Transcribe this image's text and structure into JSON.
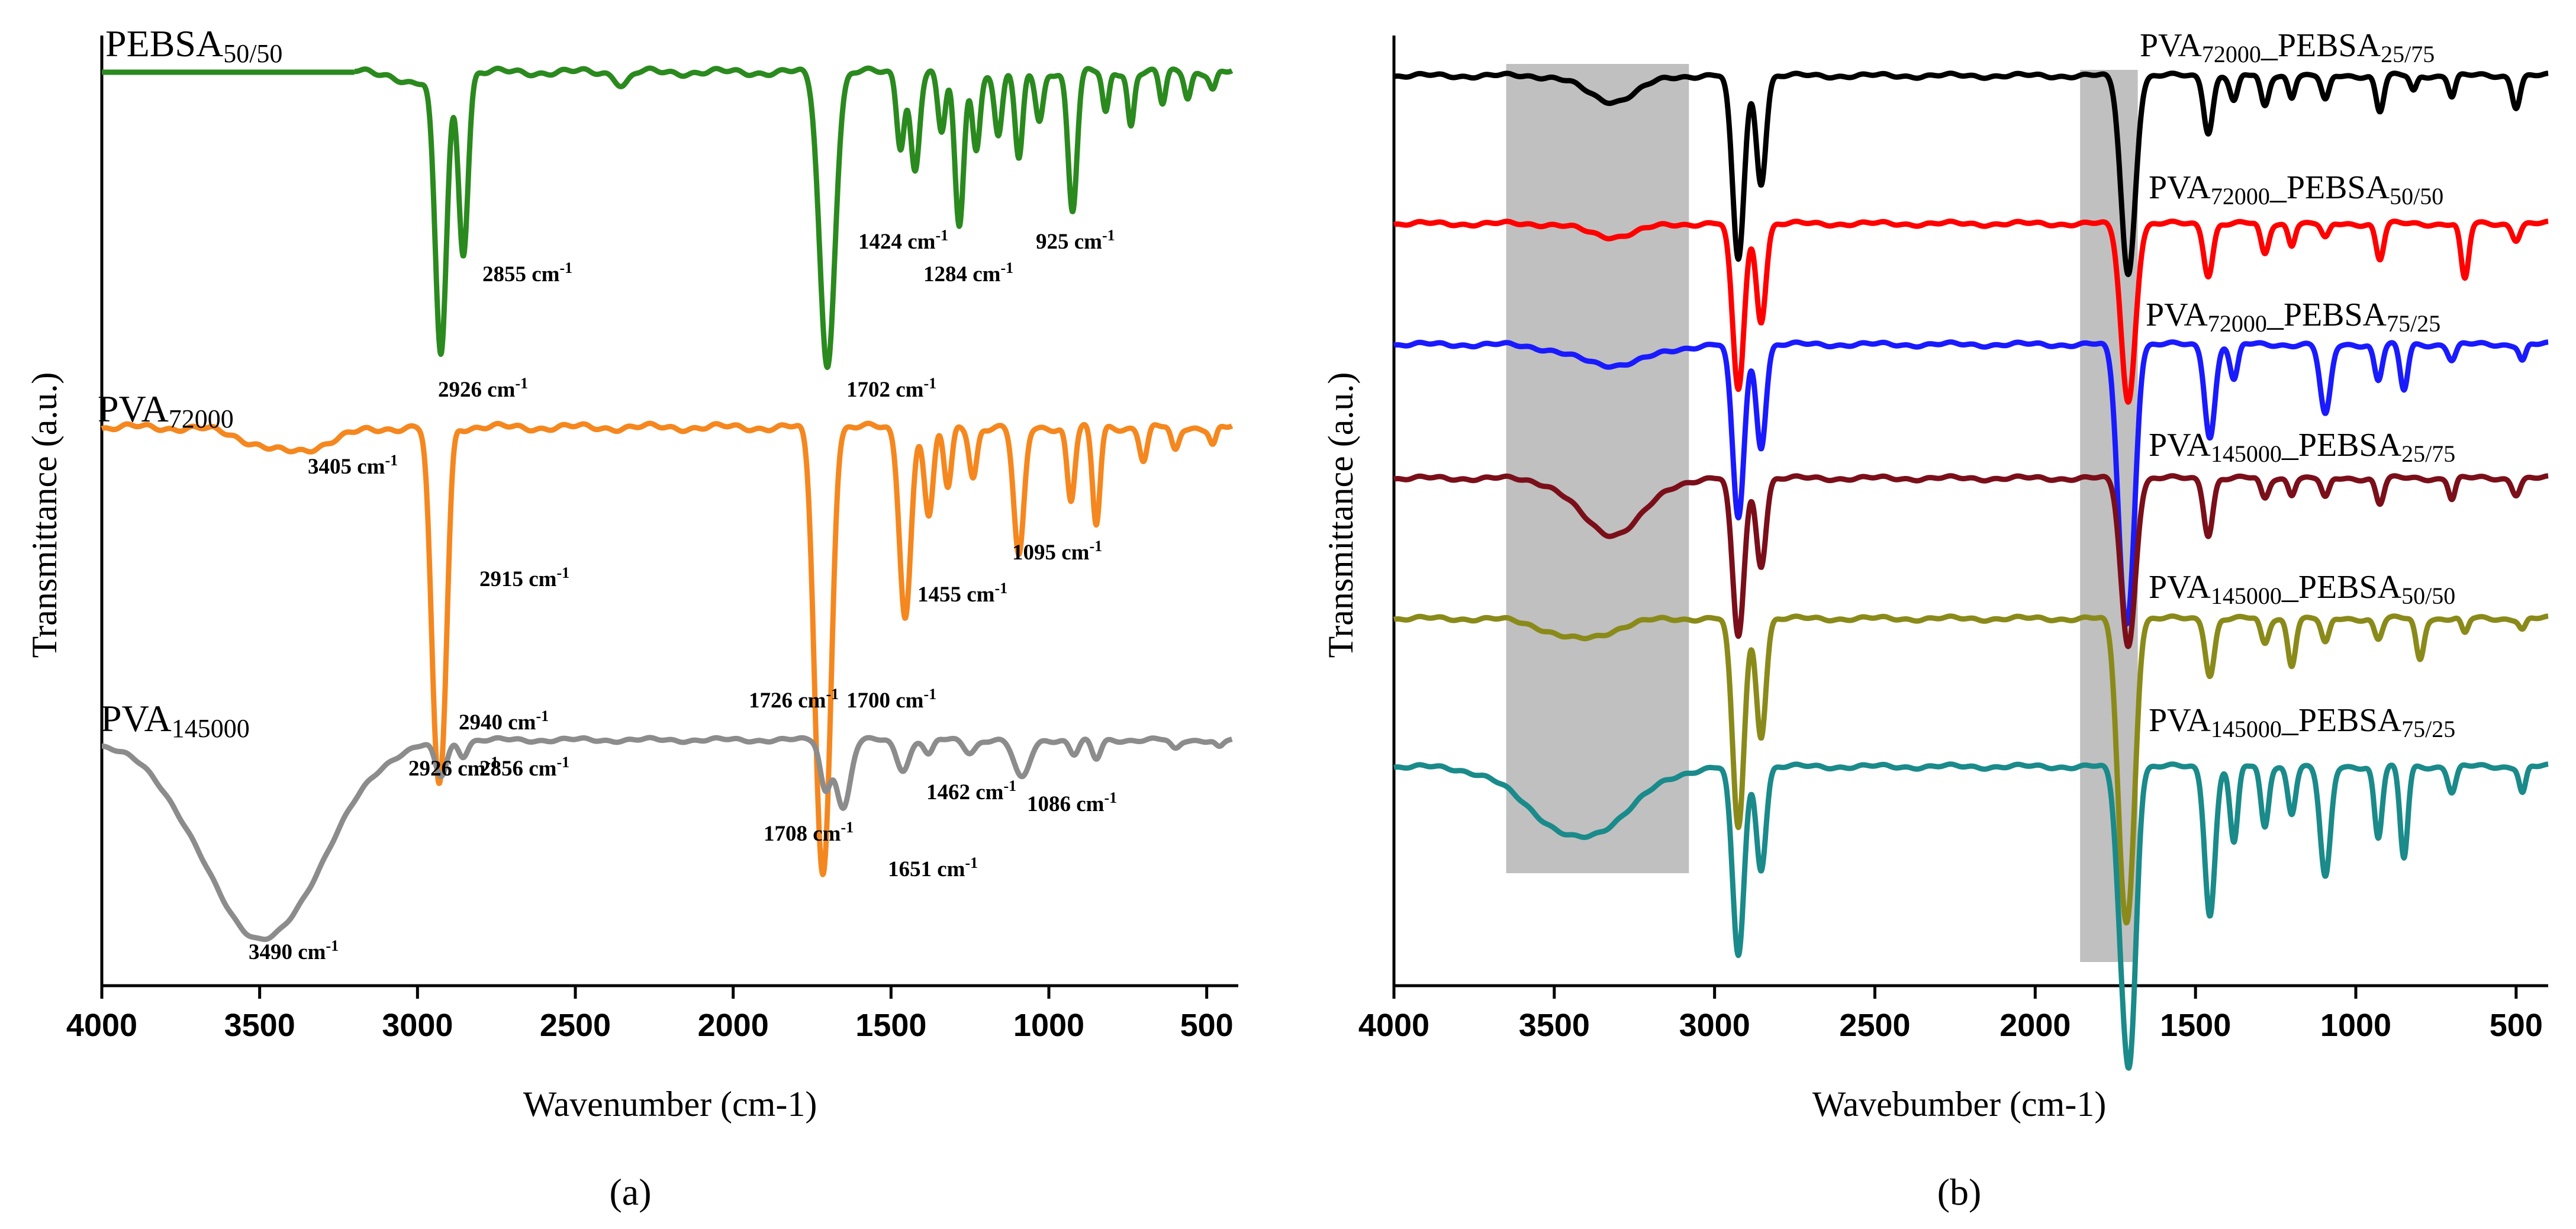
{
  "chart_data": [
    {
      "panel_label": "(a)",
      "type": "line",
      "xlabel": "Wavenumber (cm-1)",
      "ylabel": "Transmittance (a.u.)",
      "xlim": [
        4000,
        400
      ],
      "xticks": [
        4000,
        3500,
        3000,
        2500,
        2000,
        1500,
        1000,
        500
      ],
      "series": [
        {
          "name": "PEBSA50/50",
          "label_main": "PEBSA",
          "label_sub": "50/50",
          "color": "#2a8a1e",
          "baseline": 0.0,
          "noise_amp": 0.01,
          "peaks": [
            [
              3000,
              0.03,
              50
            ],
            [
              2926,
              0.68,
              18
            ],
            [
              2855,
              0.44,
              15
            ],
            [
              2350,
              0.03,
              20
            ],
            [
              1702,
              0.72,
              24
            ],
            [
              1470,
              0.18,
              12
            ],
            [
              1424,
              0.24,
              14
            ],
            [
              1340,
              0.15,
              12
            ],
            [
              1284,
              0.38,
              14
            ],
            [
              1230,
              0.19,
              12
            ],
            [
              1160,
              0.16,
              12
            ],
            [
              1095,
              0.22,
              12
            ],
            [
              1030,
              0.12,
              12
            ],
            [
              925,
              0.34,
              14
            ],
            [
              820,
              0.1,
              10
            ],
            [
              740,
              0.13,
              10
            ],
            [
              640,
              0.08,
              10
            ],
            [
              560,
              0.06,
              10
            ],
            [
              480,
              0.04,
              10
            ]
          ],
          "annotations": [
            "2926 cm-1",
            "2855 cm-1",
            "1702 cm-1",
            "1424 cm-1",
            "1284 cm-1",
            "925 cm-1"
          ]
        },
        {
          "name": "PVA72000",
          "label_main": "PVA",
          "label_sub": "72000",
          "color": "#f5871f",
          "baseline": 0.0,
          "noise_amp": 0.01,
          "peaks": [
            [
              3405,
              0.06,
              120
            ],
            [
              2940,
              0.72,
              18
            ],
            [
              2915,
              0.42,
              15
            ],
            [
              1726,
              0.82,
              20
            ],
            [
              1700,
              0.55,
              18
            ],
            [
              1455,
              0.46,
              18
            ],
            [
              1380,
              0.22,
              14
            ],
            [
              1320,
              0.15,
              12
            ],
            [
              1240,
              0.12,
              12
            ],
            [
              1095,
              0.32,
              16
            ],
            [
              930,
              0.18,
              12
            ],
            [
              850,
              0.24,
              12
            ],
            [
              700,
              0.08,
              12
            ],
            [
              600,
              0.06,
              12
            ],
            [
              480,
              0.04,
              10
            ]
          ],
          "annotations": [
            "3405 cm-1",
            "2940 cm-1",
            "2915 cm-1",
            "1726 cm-1",
            "1700 cm-1",
            "1455 cm-1",
            "1095 cm-1"
          ]
        },
        {
          "name": "PVA145000",
          "label_main": "PVA",
          "label_sub": "145000",
          "color": "#8c8c8c",
          "baseline": 0.0,
          "noise_amp": 0.01,
          "peaks": [
            [
              3490,
              0.82,
              190
            ],
            [
              2926,
              0.14,
              18
            ],
            [
              2856,
              0.06,
              14
            ],
            [
              1708,
              0.2,
              16
            ],
            [
              1651,
              0.28,
              22
            ],
            [
              1462,
              0.12,
              20
            ],
            [
              1380,
              0.06,
              14
            ],
            [
              1250,
              0.05,
              18
            ],
            [
              1086,
              0.16,
              24
            ],
            [
              920,
              0.06,
              14
            ],
            [
              850,
              0.08,
              14
            ],
            [
              600,
              0.04,
              14
            ],
            [
              460,
              0.03,
              12
            ]
          ],
          "annotations": [
            "2926 cm-1",
            "2856 cm-1",
            "1708 cm-1",
            "1651 cm-1",
            "1462 cm-1",
            "1086 cm-1",
            "3490 cm-1"
          ]
        }
      ]
    },
    {
      "panel_label": "(b)",
      "type": "line",
      "xlabel": "Wavebumber (cm-1)",
      "ylabel": "Transmittance (a.u.)",
      "xlim": [
        4000,
        400
      ],
      "xticks": [
        4000,
        3500,
        3000,
        2500,
        2000,
        1500,
        1000,
        500
      ],
      "highlight_regions_cm": [
        [
          3650,
          3080
        ],
        [
          1860,
          1680
        ]
      ],
      "series": [
        {
          "name": "PVA72000_PEBSA25/75",
          "label_main": "PVA",
          "label_sub1": "72000",
          "label_mid": "_PEBSA",
          "label_sub2": "25/75",
          "color": "#000000",
          "peaks": [
            [
              3320,
              0.1,
              80
            ],
            [
              2926,
              0.72,
              18
            ],
            [
              2855,
              0.42,
              15
            ],
            [
              1710,
              0.78,
              22
            ],
            [
              1460,
              0.22,
              14
            ],
            [
              1380,
              0.1,
              12
            ],
            [
              1284,
              0.12,
              12
            ],
            [
              1200,
              0.08,
              10
            ],
            [
              1095,
              0.1,
              12
            ],
            [
              925,
              0.14,
              12
            ],
            [
              820,
              0.06,
              10
            ],
            [
              700,
              0.08,
              10
            ],
            [
              500,
              0.12,
              12
            ]
          ]
        },
        {
          "name": "PVA72000_PEBSA50/50",
          "label_main": "PVA",
          "label_sub1": "72000",
          "label_mid": "_PEBSA",
          "label_sub2": "50/50",
          "color": "#ff0000",
          "peaks": [
            [
              3320,
              0.05,
              80
            ],
            [
              2926,
              0.65,
              18
            ],
            [
              2855,
              0.38,
              15
            ],
            [
              1710,
              0.7,
              22
            ],
            [
              1460,
              0.2,
              14
            ],
            [
              1284,
              0.12,
              12
            ],
            [
              1200,
              0.08,
              10
            ],
            [
              1095,
              0.06,
              12
            ],
            [
              925,
              0.14,
              12
            ],
            [
              660,
              0.22,
              12
            ],
            [
              500,
              0.06,
              12
            ]
          ]
        },
        {
          "name": "PVA72000_PEBSA75/25",
          "label_main": "PVA",
          "label_sub1": "72000",
          "label_mid": "_PEBSA",
          "label_sub2": "75/25",
          "color": "#1a1aff",
          "peaks": [
            [
              3320,
              0.08,
              120
            ],
            [
              2926,
              0.68,
              18
            ],
            [
              2855,
              0.4,
              15
            ],
            [
              1726,
              0.8,
              20
            ],
            [
              1700,
              0.58,
              18
            ],
            [
              1455,
              0.36,
              16
            ],
            [
              1380,
              0.14,
              12
            ],
            [
              1095,
              0.28,
              16
            ],
            [
              930,
              0.14,
              12
            ],
            [
              850,
              0.18,
              12
            ],
            [
              700,
              0.06,
              12
            ],
            [
              480,
              0.06,
              10
            ]
          ]
        },
        {
          "name": "PVA145000_PEBSA25/75",
          "label_main": "PVA",
          "label_sub1": "145000",
          "label_mid": "_PEBSA",
          "label_sub2": "25/75",
          "color": "#7a0f1a",
          "peaks": [
            [
              3320,
              0.22,
              100
            ],
            [
              2926,
              0.62,
              18
            ],
            [
              2855,
              0.34,
              15
            ],
            [
              1710,
              0.66,
              22
            ],
            [
              1460,
              0.22,
              14
            ],
            [
              1284,
              0.08,
              12
            ],
            [
              1200,
              0.06,
              10
            ],
            [
              1095,
              0.08,
              12
            ],
            [
              925,
              0.1,
              12
            ],
            [
              700,
              0.08,
              10
            ],
            [
              500,
              0.06,
              12
            ]
          ]
        },
        {
          "name": "PVA145000_PEBSA50/50",
          "label_main": "PVA",
          "label_sub1": "145000",
          "label_mid": "_PEBSA",
          "label_sub2": "50/50",
          "color": "#8a8a1a",
          "peaks": [
            [
              3420,
              0.08,
              100
            ],
            [
              2926,
              0.82,
              18
            ],
            [
              2855,
              0.46,
              15
            ],
            [
              1726,
              0.88,
              20
            ],
            [
              1700,
              0.62,
              18
            ],
            [
              1455,
              0.22,
              14
            ],
            [
              1284,
              0.1,
              12
            ],
            [
              1200,
              0.18,
              12
            ],
            [
              1095,
              0.1,
              12
            ],
            [
              930,
              0.08,
              12
            ],
            [
              800,
              0.16,
              12
            ],
            [
              660,
              0.06,
              10
            ],
            [
              480,
              0.04,
              10
            ]
          ]
        },
        {
          "name": "PVA145000_PEBSA75/25",
          "label_main": "PVA",
          "label_sub1": "145000",
          "label_mid": "_PEBSA",
          "label_sub2": "75/25",
          "color": "#1a8a8a",
          "peaks": [
            [
              3420,
              0.28,
              150
            ],
            [
              2926,
              0.74,
              18
            ],
            [
              2855,
              0.4,
              15
            ],
            [
              1726,
              0.66,
              20
            ],
            [
              1700,
              0.82,
              18
            ],
            [
              1455,
              0.58,
              16
            ],
            [
              1380,
              0.3,
              12
            ],
            [
              1284,
              0.24,
              12
            ],
            [
              1200,
              0.18,
              12
            ],
            [
              1095,
              0.44,
              16
            ],
            [
              930,
              0.28,
              12
            ],
            [
              850,
              0.36,
              12
            ],
            [
              700,
              0.1,
              12
            ],
            [
              480,
              0.1,
              10
            ]
          ]
        }
      ]
    }
  ]
}
